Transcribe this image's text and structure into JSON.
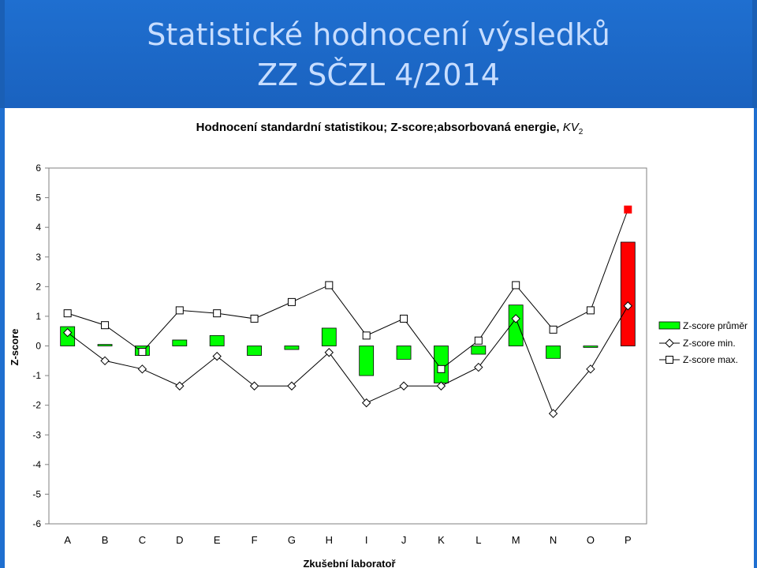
{
  "header": {
    "title_line1": "Statistické hodnocení výsledků",
    "title_line2": "ZZ SČZL 4/2014"
  },
  "colors": {
    "header_bg": "#1f6fd0",
    "header_text": "#c7ddff",
    "bar_fill": "#00ff00",
    "highlight_fill": "#ff0000"
  },
  "chart_data": {
    "type": "bar",
    "title_main": "Hodnocení standardní statistikou; Z-score;absorbovaná energie, ",
    "title_kv": "KV",
    "title_sub": "2",
    "xlabel": "Zkušební laboratoř",
    "ylabel": "Z-score",
    "ylim": [
      -6,
      6
    ],
    "yticks": [
      "-6",
      "-5",
      "-4",
      "-3",
      "-2",
      "-1",
      "0",
      "1",
      "2",
      "3",
      "4",
      "5",
      "6"
    ],
    "categories": [
      "A",
      "B",
      "C",
      "D",
      "E",
      "F",
      "G",
      "H",
      "I",
      "J",
      "K",
      "L",
      "M",
      "N",
      "O",
      "P"
    ],
    "highlight_category": "P",
    "series": [
      {
        "name": "Z-score průměr",
        "kind": "bar",
        "values": [
          0.65,
          0.05,
          -0.32,
          0.2,
          0.35,
          -0.32,
          -0.12,
          0.6,
          -1.0,
          -0.45,
          -1.25,
          -0.28,
          1.38,
          -0.42,
          -0.05,
          3.5
        ]
      },
      {
        "name": "Z-score min.",
        "kind": "line-diamond",
        "values": [
          0.45,
          -0.5,
          -0.78,
          -1.35,
          -0.35,
          -1.35,
          -1.35,
          -0.22,
          -1.92,
          -1.35,
          -1.35,
          -0.72,
          0.92,
          -2.28,
          -0.78,
          1.35
        ]
      },
      {
        "name": "Z-score max.",
        "kind": "line-square",
        "values": [
          1.1,
          0.7,
          -0.2,
          1.2,
          1.1,
          0.92,
          1.48,
          2.05,
          0.35,
          0.92,
          -0.78,
          0.18,
          2.05,
          0.55,
          1.2,
          4.6
        ]
      }
    ],
    "grid": false,
    "legend_position": "right"
  }
}
